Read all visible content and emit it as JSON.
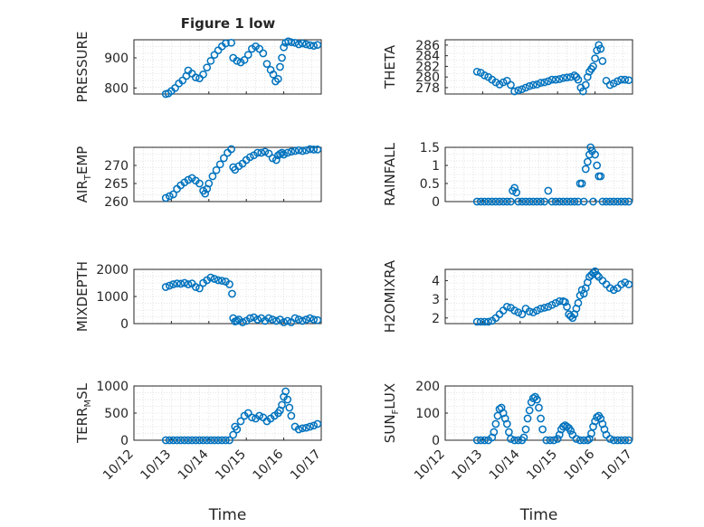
{
  "figure_title": "Figure 1 low",
  "colors": {
    "marker": "#0072BD",
    "axis": "#262626",
    "grid": "#dcdcdc",
    "background": "#ffffff"
  },
  "chart_data": [
    {
      "type": "scatter",
      "ylabel": "PRESSURE",
      "title": "Figure 1 low",
      "xlim": [
        0,
        5
      ],
      "ylim": [
        780,
        960
      ],
      "yticks": [
        800,
        900
      ],
      "x": [
        0.85,
        0.92,
        1.0,
        1.1,
        1.2,
        1.3,
        1.4,
        1.45,
        1.55,
        1.65,
        1.75,
        1.85,
        1.95,
        2.05,
        2.15,
        2.25,
        2.35,
        2.45,
        2.6,
        2.65,
        2.75,
        2.85,
        2.95,
        3.05,
        3.15,
        3.25,
        3.35,
        3.45,
        3.55,
        3.65,
        3.72,
        3.78,
        3.85,
        3.9,
        3.95,
        4.0,
        4.05,
        4.12,
        4.2,
        4.3,
        4.4,
        4.5,
        4.6,
        4.7,
        4.8,
        4.9
      ],
      "y": [
        780,
        782,
        790,
        800,
        815,
        825,
        840,
        858,
        848,
        835,
        832,
        845,
        868,
        890,
        910,
        925,
        938,
        948,
        950,
        900,
        890,
        885,
        893,
        910,
        930,
        938,
        930,
        915,
        880,
        860,
        845,
        822,
        830,
        870,
        900,
        935,
        950,
        955,
        952,
        950,
        945,
        948,
        945,
        942,
        940,
        943
      ]
    },
    {
      "type": "scatter",
      "ylabel": "THETA",
      "xlim": [
        0,
        5
      ],
      "ylim": [
        276.8,
        287
      ],
      "yticks": [
        278,
        280,
        282,
        284,
        286
      ],
      "x": [
        0.85,
        0.95,
        1.05,
        1.15,
        1.25,
        1.35,
        1.45,
        1.55,
        1.65,
        1.75,
        1.85,
        1.95,
        2.05,
        2.15,
        2.25,
        2.35,
        2.45,
        2.55,
        2.65,
        2.75,
        2.85,
        2.95,
        3.05,
        3.15,
        3.25,
        3.35,
        3.45,
        3.5,
        3.55,
        3.62,
        3.68,
        3.75,
        3.8,
        3.85,
        3.9,
        3.95,
        4.0,
        4.05,
        4.1,
        4.15,
        4.2,
        4.3,
        4.4,
        4.5,
        4.6,
        4.7,
        4.8,
        4.9
      ],
      "y": [
        281,
        280.8,
        280.3,
        280,
        279.5,
        279,
        278.6,
        279,
        279.3,
        278.5,
        277.3,
        277.5,
        277.7,
        278,
        278.3,
        278.5,
        278.6,
        278.9,
        279,
        279.2,
        279.5,
        279.5,
        279.6,
        279.8,
        279.9,
        280,
        280.3,
        280,
        279.5,
        278,
        277.3,
        278.5,
        280,
        281,
        281.5,
        282,
        283.5,
        285,
        286,
        285.3,
        283,
        279.3,
        278.5,
        278.8,
        279.2,
        279.5,
        279.5,
        279.4
      ]
    },
    {
      "type": "scatter",
      "ylabel": "AIR_TEMP",
      "xlim": [
        0,
        5
      ],
      "ylim": [
        260,
        275
      ],
      "yticks": [
        260,
        265,
        270
      ],
      "x": [
        0.85,
        0.95,
        1.05,
        1.15,
        1.25,
        1.35,
        1.45,
        1.55,
        1.65,
        1.75,
        1.85,
        1.9,
        1.95,
        2.0,
        2.1,
        2.2,
        2.3,
        2.4,
        2.5,
        2.6,
        2.65,
        2.7,
        2.8,
        2.9,
        3.0,
        3.1,
        3.2,
        3.3,
        3.4,
        3.5,
        3.6,
        3.7,
        3.8,
        3.85,
        3.9,
        3.95,
        4.0,
        4.1,
        4.2,
        4.3,
        4.4,
        4.5,
        4.6,
        4.7,
        4.8,
        4.9
      ],
      "y": [
        261,
        261.5,
        262,
        263.5,
        264.5,
        265.3,
        266,
        266.5,
        265.8,
        265,
        263,
        262.2,
        263.5,
        265,
        267,
        268.7,
        270.3,
        272,
        273.5,
        274.5,
        269.5,
        268.8,
        269.8,
        270.5,
        271.5,
        272.3,
        272.8,
        273.5,
        273.5,
        273.8,
        273.3,
        272,
        271.5,
        272.8,
        273.2,
        273.5,
        273,
        273.5,
        273.8,
        274,
        274.2,
        274,
        274.2,
        274.5,
        274.4,
        274.4
      ]
    },
    {
      "type": "scatter",
      "ylabel": "RAINFALL",
      "xlim": [
        0,
        5
      ],
      "ylim": [
        0,
        1.5
      ],
      "yticks": [
        0,
        0.5,
        1,
        1.5
      ],
      "ytick_labels": [
        "0",
        "0.5",
        "1",
        "1.5"
      ],
      "x": [
        0.85,
        0.95,
        1.05,
        1.15,
        1.25,
        1.35,
        1.45,
        1.55,
        1.65,
        1.75,
        1.8,
        1.85,
        1.9,
        1.95,
        2.05,
        2.15,
        2.25,
        2.35,
        2.45,
        2.55,
        2.65,
        2.75,
        2.85,
        2.95,
        3.05,
        3.15,
        3.25,
        3.35,
        3.45,
        3.55,
        3.6,
        3.65,
        3.7,
        3.75,
        3.8,
        3.85,
        3.88,
        3.92,
        3.95,
        4.0,
        4.05,
        4.1,
        4.15,
        4.2,
        4.3,
        4.4,
        4.5,
        4.6,
        4.7,
        4.8,
        4.9
      ],
      "y": [
        0,
        0,
        0,
        0,
        0,
        0,
        0,
        0,
        0,
        0,
        0.3,
        0.38,
        0.25,
        0,
        0,
        0,
        0,
        0,
        0,
        0,
        0,
        0.3,
        0,
        0,
        0,
        0,
        0,
        0,
        0,
        0,
        0.5,
        0.5,
        0,
        0.9,
        1.1,
        1.3,
        1.5,
        1.4,
        0,
        1.3,
        1.0,
        0.7,
        0.7,
        0,
        0,
        0,
        0,
        0,
        0,
        0,
        0
      ]
    },
    {
      "type": "scatter",
      "ylabel": "MIXDEPTH",
      "xlim": [
        0,
        5
      ],
      "ylim": [
        0,
        2000
      ],
      "yticks": [
        0,
        1000,
        2000
      ],
      "x": [
        0.85,
        0.95,
        1.05,
        1.15,
        1.25,
        1.35,
        1.45,
        1.55,
        1.65,
        1.75,
        1.85,
        1.95,
        2.05,
        2.15,
        2.25,
        2.35,
        2.45,
        2.55,
        2.62,
        2.65,
        2.7,
        2.75,
        2.8,
        2.9,
        3.0,
        3.1,
        3.2,
        3.3,
        3.4,
        3.5,
        3.6,
        3.7,
        3.8,
        3.9,
        4.0,
        4.1,
        4.2,
        4.3,
        4.4,
        4.5,
        4.6,
        4.7,
        4.8,
        4.9
      ],
      "y": [
        1350,
        1400,
        1450,
        1480,
        1470,
        1500,
        1450,
        1480,
        1350,
        1300,
        1500,
        1600,
        1700,
        1650,
        1600,
        1580,
        1550,
        1450,
        1100,
        200,
        80,
        100,
        150,
        50,
        100,
        200,
        230,
        150,
        200,
        100,
        200,
        150,
        100,
        150,
        50,
        100,
        50,
        200,
        150,
        100,
        150,
        200,
        150,
        130
      ]
    },
    {
      "type": "scatter",
      "ylabel": "H2OMIXRA",
      "xlim": [
        0,
        5
      ],
      "ylim": [
        1.7,
        4.6
      ],
      "yticks": [
        2,
        3,
        4
      ],
      "x": [
        0.85,
        0.95,
        1.05,
        1.15,
        1.25,
        1.35,
        1.45,
        1.55,
        1.65,
        1.75,
        1.85,
        1.95,
        2.05,
        2.15,
        2.25,
        2.35,
        2.45,
        2.55,
        2.65,
        2.75,
        2.85,
        2.95,
        3.05,
        3.15,
        3.2,
        3.25,
        3.3,
        3.35,
        3.4,
        3.45,
        3.5,
        3.55,
        3.6,
        3.65,
        3.7,
        3.75,
        3.8,
        3.85,
        3.9,
        3.95,
        4.0,
        4.05,
        4.1,
        4.2,
        4.3,
        4.4,
        4.5,
        4.6,
        4.7,
        4.8,
        4.9
      ],
      "y": [
        1.8,
        1.8,
        1.8,
        1.8,
        1.85,
        2.0,
        2.2,
        2.4,
        2.6,
        2.55,
        2.4,
        2.3,
        2.2,
        2.5,
        2.35,
        2.3,
        2.4,
        2.5,
        2.55,
        2.6,
        2.7,
        2.8,
        2.9,
        2.9,
        2.85,
        2.6,
        2.2,
        2.1,
        2.0,
        2.2,
        2.5,
        2.8,
        3.2,
        3.5,
        3.3,
        3.6,
        3.9,
        4.2,
        4.3,
        4.4,
        4.5,
        4.3,
        4.2,
        4.0,
        3.8,
        3.6,
        3.5,
        3.6,
        3.8,
        3.9,
        3.8
      ]
    },
    {
      "type": "scatter",
      "ylabel": "TERR_MSL",
      "xlim": [
        0,
        5
      ],
      "ylim": [
        0,
        1000
      ],
      "yticks": [
        0,
        500,
        1000
      ],
      "x": [
        0.85,
        0.95,
        1.05,
        1.15,
        1.25,
        1.35,
        1.45,
        1.55,
        1.65,
        1.75,
        1.85,
        1.95,
        2.05,
        2.15,
        2.25,
        2.35,
        2.45,
        2.55,
        2.65,
        2.7,
        2.75,
        2.85,
        2.95,
        3.05,
        3.15,
        3.25,
        3.35,
        3.45,
        3.55,
        3.65,
        3.75,
        3.85,
        3.9,
        3.95,
        4.0,
        4.05,
        4.1,
        4.15,
        4.2,
        4.3,
        4.4,
        4.5,
        4.6,
        4.7,
        4.8,
        4.9
      ],
      "y": [
        0,
        0,
        0,
        0,
        0,
        0,
        0,
        0,
        0,
        0,
        0,
        0,
        0,
        0,
        0,
        0,
        0,
        0,
        100,
        250,
        200,
        350,
        450,
        500,
        420,
        400,
        450,
        420,
        350,
        400,
        450,
        500,
        550,
        650,
        800,
        900,
        750,
        600,
        450,
        250,
        200,
        220,
        230,
        250,
        270,
        300
      ]
    },
    {
      "type": "scatter",
      "ylabel": "SUN_FLUX",
      "xlim": [
        0,
        5
      ],
      "ylim": [
        0,
        200
      ],
      "yticks": [
        0,
        100,
        200
      ],
      "xlabel": "Time",
      "xticks": [
        0,
        1,
        2,
        3,
        4,
        5
      ],
      "xtick_labels": [
        "10/12",
        "10/13",
        "10/14",
        "10/15",
        "10/16",
        "10/17"
      ],
      "x": [
        0.85,
        0.95,
        1.05,
        1.15,
        1.25,
        1.3,
        1.35,
        1.4,
        1.45,
        1.5,
        1.55,
        1.6,
        1.65,
        1.7,
        1.75,
        1.85,
        1.95,
        2.05,
        2.1,
        2.15,
        2.2,
        2.25,
        2.3,
        2.35,
        2.4,
        2.45,
        2.5,
        2.55,
        2.6,
        2.7,
        2.8,
        2.9,
        3.0,
        3.05,
        3.1,
        3.15,
        3.2,
        3.25,
        3.3,
        3.35,
        3.4,
        3.5,
        3.6,
        3.7,
        3.8,
        3.85,
        3.9,
        3.95,
        4.0,
        4.05,
        4.1,
        4.15,
        4.2,
        4.25,
        4.3,
        4.4,
        4.5,
        4.6,
        4.7,
        4.8,
        4.9
      ],
      "y": [
        0,
        0,
        0,
        0,
        10,
        30,
        60,
        90,
        115,
        120,
        100,
        80,
        60,
        30,
        5,
        0,
        0,
        0,
        10,
        40,
        80,
        110,
        140,
        155,
        160,
        150,
        120,
        80,
        40,
        0,
        0,
        0,
        5,
        20,
        40,
        50,
        55,
        50,
        45,
        35,
        20,
        5,
        0,
        0,
        0,
        5,
        25,
        50,
        70,
        85,
        90,
        80,
        60,
        40,
        20,
        5,
        0,
        0,
        0,
        0,
        0
      ]
    }
  ]
}
